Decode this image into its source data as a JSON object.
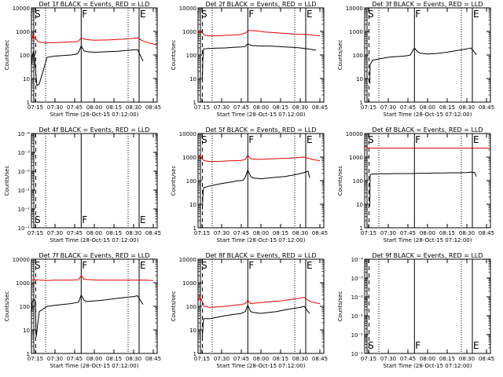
{
  "x_ticks": [
    "07:15",
    "07:30",
    "07:45",
    "08:00",
    "08:15",
    "08:30",
    "08:45"
  ],
  "xlabel": "Start Time (28-Oct-15 07:12:00)",
  "ylabel": "Counts/sec",
  "colors": {
    "events": "#000000",
    "lld": "#e00000",
    "axes": "#000000"
  },
  "chart_data": [
    {
      "type": "line",
      "title": "Det 1f BLACK = Events, RED = LLD",
      "ylabel": "Counts/sec",
      "ylim": [
        1,
        10000
      ],
      "y_ticks": [
        "1",
        "10",
        "100",
        "1000",
        "10000"
      ],
      "markers": [
        {
          "label": "S",
          "x": 7.23
        },
        {
          "label": "F",
          "x": 7.833
        },
        {
          "label": "E",
          "x": 8.57
        }
      ],
      "series": [
        {
          "color": "#e00000",
          "x": [
            7.2,
            7.213,
            7.223,
            7.233,
            7.26,
            7.3,
            7.4,
            7.5,
            7.6,
            7.7,
            7.78,
            7.8,
            7.833,
            7.9,
            8.0,
            8.1,
            8.2,
            8.3,
            8.4,
            8.5,
            8.55,
            8.6,
            8.65,
            8.7,
            8.75,
            8.8
          ],
          "y": [
            400,
            550,
            700,
            600,
            450,
            350,
            330,
            330,
            350,
            360,
            370,
            400,
            520,
            450,
            420,
            430,
            440,
            460,
            480,
            510,
            540,
            420,
            360,
            320,
            290,
            260
          ]
        },
        {
          "color": "#000000",
          "x": [
            7.205,
            7.21,
            7.23,
            7.27,
            7.3,
            7.4,
            7.5,
            7.6,
            7.7,
            7.78,
            7.8,
            7.833,
            7.87,
            7.9,
            8.0,
            8.1,
            8.2,
            8.3,
            8.4,
            8.5,
            8.55,
            8.6,
            8.62
          ],
          "y": [
            40,
            90,
            150,
            5,
            6,
            80,
            90,
            95,
            100,
            110,
            130,
            240,
            150,
            140,
            130,
            135,
            140,
            145,
            155,
            165,
            170,
            75,
            55
          ]
        }
      ]
    },
    {
      "type": "line",
      "title": "Det 2f BLACK = Events, RED = LLD",
      "ylabel": "Counts/sec",
      "ylim": [
        1,
        10000
      ],
      "y_ticks": [
        "1",
        "10",
        "100",
        "1000",
        "10000"
      ],
      "markers": [
        {
          "label": "S",
          "x": 7.23
        },
        {
          "label": "F",
          "x": 7.833
        },
        {
          "label": "E",
          "x": 8.57
        }
      ],
      "series": [
        {
          "color": "#e00000",
          "x": [
            7.2,
            7.22,
            7.24,
            7.28,
            7.35,
            7.45,
            7.55,
            7.65,
            7.75,
            7.8,
            7.85,
            7.95,
            8.05,
            8.15,
            8.25,
            8.35,
            8.45,
            8.55,
            8.65,
            8.75
          ],
          "y": [
            800,
            1100,
            950,
            700,
            650,
            650,
            680,
            700,
            750,
            850,
            1100,
            1050,
            950,
            900,
            850,
            800,
            750,
            760,
            700,
            650
          ]
        },
        {
          "color": "#000000",
          "x": [
            7.255,
            7.26,
            7.27,
            7.35,
            7.45,
            7.55,
            7.65,
            7.75,
            7.8,
            7.833,
            7.87,
            7.9,
            8.0,
            8.1,
            8.2,
            8.3,
            8.4,
            8.5,
            8.6,
            8.7
          ],
          "y": [
            7,
            60,
            180,
            190,
            195,
            200,
            210,
            220,
            230,
            300,
            260,
            250,
            240,
            240,
            230,
            220,
            210,
            200,
            180,
            160
          ]
        }
      ]
    },
    {
      "type": "line",
      "title": "Det 3f BLACK = Events, RED = LLD",
      "ylabel": "Counts/sec",
      "ylim": [
        1,
        10000
      ],
      "y_ticks": [
        "1",
        "10",
        "100",
        "1000",
        "10000"
      ],
      "markers": [
        {
          "label": "S",
          "x": 7.23
        },
        {
          "label": "F",
          "x": 7.833
        },
        {
          "label": "E",
          "x": 8.57
        }
      ],
      "series": [
        {
          "color": "#000000",
          "x": [
            7.265,
            7.27,
            7.3,
            7.4,
            7.5,
            7.6,
            7.7,
            7.75,
            7.78,
            7.8,
            7.833,
            7.87,
            7.9,
            8.0,
            8.1,
            8.2,
            8.3,
            8.4,
            8.5,
            8.55,
            8.6,
            8.62
          ],
          "y": [
            6,
            40,
            60,
            70,
            80,
            85,
            90,
            95,
            100,
            130,
            200,
            140,
            120,
            110,
            115,
            125,
            140,
            160,
            180,
            200,
            130,
            100
          ]
        }
      ]
    },
    {
      "type": "line",
      "title": "Det 4f BLACK = Events, RED = LLD",
      "ylabel": "Counts/sec",
      "ylim": [
        1,
        10000
      ],
      "y_ticks": [
        "10⁻¹",
        "10⁻¹",
        "10⁻¹",
        "10⁻²",
        "10⁻³",
        "10⁻⁴"
      ],
      "markers": [
        {
          "label": "S",
          "x": 7.23
        },
        {
          "label": "F",
          "x": 7.833
        },
        {
          "label": "E",
          "x": 8.57
        }
      ],
      "series": []
    },
    {
      "type": "line",
      "title": "Det 5f BLACK = Events, RED = LLD",
      "ylabel": "Counts/sec",
      "ylim": [
        1,
        10000
      ],
      "y_ticks": [
        "1",
        "10",
        "100",
        "1000",
        "10000"
      ],
      "markers": [
        {
          "label": "S",
          "x": 7.23
        },
        {
          "label": "F",
          "x": 7.833
        },
        {
          "label": "E",
          "x": 8.57
        }
      ],
      "series": [
        {
          "color": "#e00000",
          "x": [
            7.2,
            7.22,
            7.24,
            7.28,
            7.35,
            7.45,
            7.55,
            7.65,
            7.75,
            7.8,
            7.833,
            7.87,
            7.95,
            8.05,
            8.15,
            8.25,
            8.35,
            8.45,
            8.55,
            8.65,
            8.75
          ],
          "y": [
            900,
            1200,
            900,
            700,
            650,
            650,
            680,
            700,
            720,
            800,
            1200,
            850,
            800,
            820,
            850,
            880,
            900,
            950,
            1000,
            800,
            700
          ]
        },
        {
          "color": "#000000",
          "x": [
            7.255,
            7.26,
            7.27,
            7.35,
            7.45,
            7.55,
            7.65,
            7.7,
            7.75,
            7.78,
            7.8,
            7.833,
            7.87,
            7.9,
            8.0,
            8.1,
            8.2,
            8.3,
            8.4,
            8.5,
            8.6,
            8.62
          ],
          "y": [
            6,
            20,
            50,
            60,
            70,
            80,
            90,
            100,
            100,
            110,
            140,
            280,
            150,
            130,
            120,
            130,
            140,
            150,
            170,
            200,
            250,
            130
          ]
        }
      ]
    },
    {
      "type": "line",
      "title": "Det 6f BLACK = Events, RED = LLD",
      "ylabel": "Counts/sec",
      "ylim": [
        1,
        10000
      ],
      "y_ticks": [
        "1",
        "10",
        "100",
        "1000",
        "10000"
      ],
      "markers": [
        {
          "label": "S",
          "x": 7.23
        },
        {
          "label": "F",
          "x": 7.833
        },
        {
          "label": "E",
          "x": 8.57
        }
      ],
      "series": [
        {
          "color": "#e00000",
          "x": [
            7.2,
            7.22,
            7.24,
            7.3,
            7.4,
            7.5,
            7.6,
            7.7,
            7.8,
            7.9,
            8.0,
            8.1,
            8.2,
            8.3,
            8.4,
            8.5,
            8.6,
            8.7,
            8.8
          ],
          "y": [
            2500,
            2800,
            2500,
            2400,
            2400,
            2400,
            2400,
            2400,
            2400,
            2400,
            2400,
            2400,
            2400,
            2400,
            2400,
            2400,
            2400,
            2400,
            2400
          ]
        },
        {
          "color": "#000000",
          "x": [
            7.265,
            7.27,
            7.3,
            7.4,
            7.5,
            7.6,
            7.7,
            7.8,
            7.9,
            8.0,
            8.1,
            8.2,
            8.3,
            8.4,
            8.5,
            8.55,
            8.6,
            8.62
          ],
          "y": [
            8,
            180,
            190,
            195,
            195,
            200,
            200,
            200,
            205,
            205,
            210,
            210,
            215,
            215,
            220,
            230,
            220,
            150
          ]
        }
      ]
    },
    {
      "type": "line",
      "title": "Det 7f BLACK = Events, RED = LLD",
      "ylabel": "Counts/sec",
      "ylim": [
        1,
        10000
      ],
      "y_ticks": [
        "1",
        "10",
        "100",
        "1000",
        "10000"
      ],
      "markers": [
        {
          "label": "S",
          "x": 7.23
        },
        {
          "label": "F",
          "x": 7.833
        },
        {
          "label": "E",
          "x": 8.57
        }
      ],
      "series": [
        {
          "color": "#e00000",
          "x": [
            7.2,
            7.25,
            7.3,
            7.4,
            7.5,
            7.6,
            7.7,
            7.8,
            7.833,
            7.87,
            7.95,
            8.05,
            8.15,
            8.25,
            8.35,
            8.45,
            8.55,
            8.65,
            8.75
          ],
          "y": [
            1300,
            1350,
            1300,
            1250,
            1300,
            1300,
            1300,
            1350,
            2000,
            1400,
            1350,
            1300,
            1300,
            1300,
            1300,
            1300,
            1300,
            1300,
            1250
          ]
        },
        {
          "color": "#000000",
          "x": [
            7.205,
            7.21,
            7.23,
            7.25,
            7.26,
            7.3,
            7.4,
            7.5,
            7.6,
            7.7,
            7.8,
            7.833,
            7.87,
            7.9,
            8.0,
            8.1,
            8.2,
            8.3,
            8.4,
            8.5,
            8.55,
            8.6,
            8.62
          ],
          "y": [
            60,
            150,
            200,
            180,
            5,
            60,
            100,
            110,
            120,
            130,
            150,
            300,
            180,
            160,
            170,
            180,
            200,
            220,
            240,
            260,
            280,
            150,
            120
          ]
        }
      ]
    },
    {
      "type": "line",
      "title": "Det 8f BLACK = Events, RED = LLD",
      "ylabel": "Counts/sec",
      "ylim": [
        1,
        10000
      ],
      "y_ticks": [
        "1",
        "10",
        "100",
        "1000",
        "10000"
      ],
      "markers": [
        {
          "label": "S",
          "x": 7.23
        },
        {
          "label": "F",
          "x": 7.833
        },
        {
          "label": "E",
          "x": 8.57
        }
      ],
      "series": [
        {
          "color": "#e00000",
          "x": [
            7.2,
            7.22,
            7.24,
            7.28,
            7.35,
            7.45,
            7.55,
            7.65,
            7.75,
            7.8,
            7.833,
            7.87,
            7.95,
            8.05,
            8.15,
            8.25,
            8.35,
            8.45,
            8.55,
            8.6,
            8.65,
            8.75
          ],
          "y": [
            150,
            300,
            200,
            100,
            90,
            95,
            100,
            110,
            120,
            130,
            180,
            130,
            140,
            150,
            160,
            170,
            190,
            210,
            240,
            180,
            150,
            130
          ]
        },
        {
          "color": "#000000",
          "x": [
            7.255,
            7.26,
            7.27,
            7.35,
            7.45,
            7.55,
            7.65,
            7.75,
            7.8,
            7.833,
            7.87,
            7.9,
            8.0,
            8.1,
            8.2,
            8.3,
            8.4,
            8.5,
            8.55,
            8.6,
            8.62
          ],
          "y": [
            5,
            10,
            30,
            30,
            35,
            40,
            45,
            50,
            60,
            110,
            60,
            55,
            50,
            55,
            60,
            70,
            80,
            90,
            100,
            60,
            50
          ]
        }
      ]
    },
    {
      "type": "line",
      "title": "Det 9f BLACK = Events, RED = LLD",
      "ylabel": "Counts/sec",
      "ylim": [
        1,
        10000
      ],
      "y_ticks": [
        "10⁻¹",
        "10⁻¹",
        "10⁻¹",
        "10⁻²",
        "10⁻³",
        "10⁻⁴"
      ],
      "markers": [
        {
          "label": "S",
          "x": 7.23
        },
        {
          "label": "F",
          "x": 7.833
        },
        {
          "label": "E",
          "x": 8.57
        }
      ],
      "series": []
    }
  ]
}
